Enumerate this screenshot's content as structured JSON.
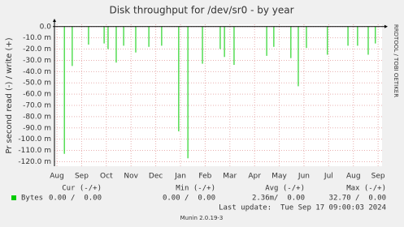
{
  "chart_data": {
    "type": "spikes",
    "title": "Disk throughput for /dev/sr0 - by year",
    "y_label": "Pr second read (-) / write (+)",
    "side_label": "RRDTOOL / TOBI OETIKER",
    "ylim": [
      -124,
      2
    ],
    "yticks": [
      {
        "value": 0,
        "label": "0.0"
      },
      {
        "value": -10,
        "label": "-10.0 m"
      },
      {
        "value": -20,
        "label": "-20.0 m"
      },
      {
        "value": -30,
        "label": "-30.0 m"
      },
      {
        "value": -40,
        "label": "-40.0 m"
      },
      {
        "value": -50,
        "label": "-50.0 m"
      },
      {
        "value": -60,
        "label": "-60.0 m"
      },
      {
        "value": -70,
        "label": "-70.0 m"
      },
      {
        "value": -80,
        "label": "-80.0 m"
      },
      {
        "value": -90,
        "label": "-90.0 m"
      },
      {
        "value": -100,
        "label": "-100.0 m"
      },
      {
        "value": -110,
        "label": "-110.0 m"
      },
      {
        "value": -120,
        "label": "-120.0 m"
      }
    ],
    "xlim": [
      -0.1,
      13.16
    ],
    "xticks": [
      {
        "value": 0,
        "label": "Aug"
      },
      {
        "value": 1,
        "label": "Sep"
      },
      {
        "value": 2,
        "label": "Oct"
      },
      {
        "value": 3,
        "label": "Nov"
      },
      {
        "value": 4,
        "label": "Dec"
      },
      {
        "value": 5,
        "label": "Jan"
      },
      {
        "value": 6,
        "label": "Feb"
      },
      {
        "value": 7,
        "label": "Mar"
      },
      {
        "value": 8,
        "label": "Apr"
      },
      {
        "value": 9,
        "label": "May"
      },
      {
        "value": 10,
        "label": "Jun"
      },
      {
        "value": 11,
        "label": "Jul"
      },
      {
        "value": 12,
        "label": "Aug"
      },
      {
        "value": 13,
        "label": "Sep"
      }
    ],
    "grid": true,
    "stat_headers": [
      "Cur (-/+)",
      "Min (-/+)",
      "Avg (-/+)",
      "Max (-/+)"
    ],
    "series": [
      {
        "name": "Bytes",
        "color": "#00cc00",
        "x": [
          0.3,
          0.62,
          1.28,
          1.91,
          2.07,
          2.4,
          2.7,
          3.19,
          3.72,
          4.24,
          4.93,
          5.3,
          5.89,
          6.61,
          6.78,
          7.17,
          8.49,
          8.78,
          9.47,
          9.77,
          10.1,
          10.95,
          11.78,
          12.17,
          12.6,
          12.89
        ],
        "values": [
          -113,
          -35,
          -16,
          -15,
          -20,
          -32,
          -17,
          -23,
          -18,
          -17,
          -93,
          -117,
          -33,
          -20,
          -27,
          -34,
          -26,
          -18,
          -28,
          -53,
          -19,
          -25,
          -17,
          -17,
          -25,
          -15
        ],
        "stats": [
          "0.00 /  0.00",
          "0.00 /  0.00",
          "2.36m/  0.00",
          "32.70 /  0.00"
        ]
      }
    ],
    "last_update": "Last update:  Tue Sep 17 09:00:03 2024",
    "footer": "Munin 2.0.19-3"
  }
}
